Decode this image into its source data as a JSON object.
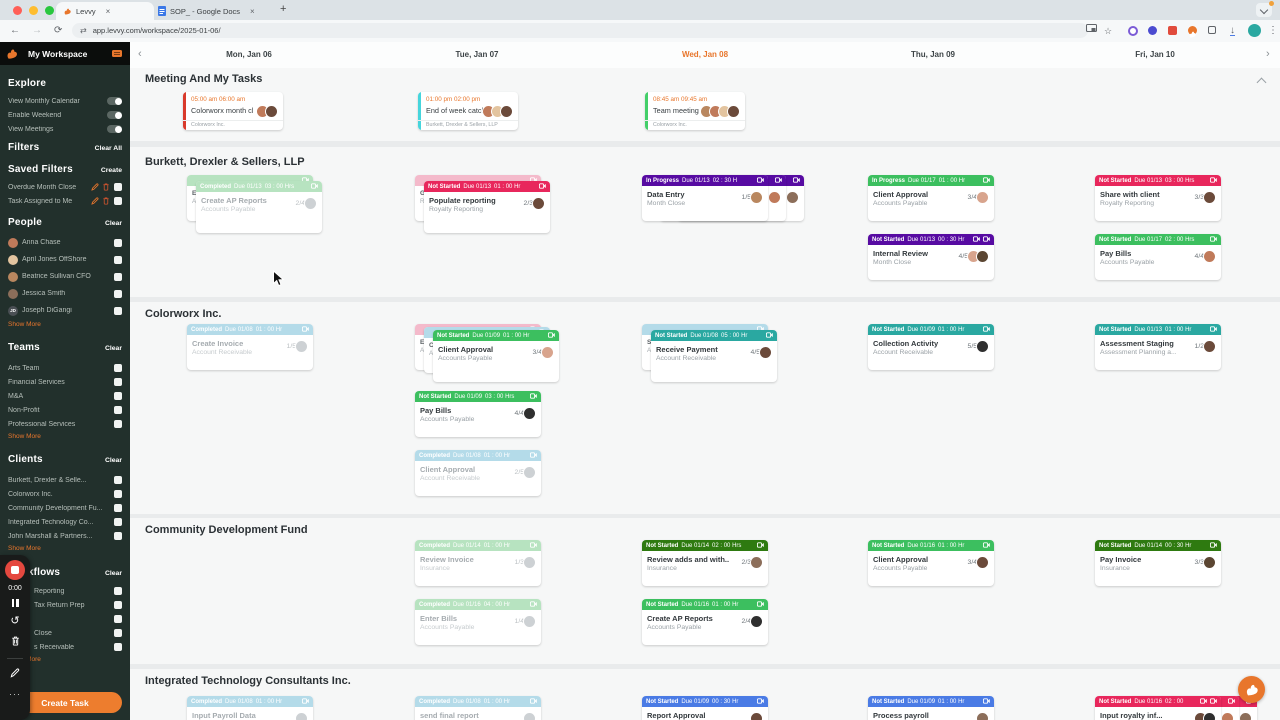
{
  "browser": {
    "tabs": [
      {
        "title": "Levvy",
        "active": true
      },
      {
        "title": "SOP_ - Google Docs",
        "active": false
      }
    ],
    "url": "app.levvy.com/workspace/2025-01-06/"
  },
  "sidebar": {
    "workspace_title": "My Workspace",
    "explore": {
      "title": "Explore",
      "toggles": [
        {
          "label": "View Monthly Calendar",
          "on": false
        },
        {
          "label": "Enable Weekend",
          "on": false
        },
        {
          "label": "View Meetings",
          "on": false
        }
      ]
    },
    "filters": {
      "title": "Filters",
      "action": "Clear All"
    },
    "saved_filters": {
      "title": "Saved Filters",
      "action": "Create",
      "items": [
        {
          "label": "Overdue Month Close"
        },
        {
          "label": "Task Assigned to Me"
        }
      ]
    },
    "people": {
      "title": "People",
      "action": "Clear",
      "show_more": "Show More",
      "items": [
        {
          "name": "Anna Chase",
          "avatar": "#c07a5a"
        },
        {
          "name": "April Jones OffShore",
          "avatar": "#e3c49f"
        },
        {
          "name": "Beatrice Sullivan CFO",
          "avatar": "#b9875f"
        },
        {
          "name": "Jessica Smith",
          "avatar": "#8c6e5a"
        },
        {
          "name": "Joseph DiGangi",
          "avatar": "#4a4f54",
          "initials": "JD"
        }
      ]
    },
    "teams": {
      "title": "Teams",
      "action": "Clear",
      "show_more": "Show More",
      "items": [
        "Arts Team",
        "Financial Services",
        "M&A",
        "Non-Profit",
        "Professional Services"
      ]
    },
    "clients": {
      "title": "Clients",
      "action": "Clear",
      "show_more": "Show More",
      "items": [
        "Burkett, Drexler & Selle...",
        "Colorworx Inc.",
        "Community Development Fu...",
        "Integrated Technology Co...",
        "John Marshall & Partners..."
      ]
    },
    "workflows": {
      "title": "Workflows",
      "action": "Clear",
      "show_more": "Show More",
      "items": [
        "Reporting",
        "Tax Return Prep",
        "",
        "Close",
        "s Receivable"
      ]
    },
    "create_task": "Create Task"
  },
  "recorder": {
    "time": "0:00"
  },
  "calendar": {
    "days": [
      {
        "label": "Mon, Jan 06",
        "active": false
      },
      {
        "label": "Tue, Jan 07",
        "active": false
      },
      {
        "label": "Wed, Jan 08",
        "active": true
      },
      {
        "label": "Thu, Jan 09",
        "active": false
      },
      {
        "label": "Fri, Jan 10",
        "active": false
      }
    ]
  },
  "status_colors": {
    "crimson": "#e8275c",
    "purple": "#570ba2",
    "green": "#3cbf5f",
    "darkgreen": "#2e7a10",
    "teal": "#2aa8a1",
    "blue": "#4a7be5",
    "fadedBlue": "#b4dbe9",
    "fadedGreen": "#b7e3c0",
    "fadedPink": "#f4bacb"
  },
  "accent_orange": "#e8762c",
  "board": {
    "sections": [
      {
        "title": "Meeting And My Tasks",
        "meetings": [
          {
            "col": 0,
            "time": "05:00 am 06:00 am",
            "title": "Colorworx month clos...",
            "client": "Colorworx Inc.",
            "bar": "#d93a2b",
            "avatars": [
              "#c07a5a",
              "#6b4a3a"
            ]
          },
          {
            "col": 1,
            "time": "01:00 pm 02:00 pm",
            "title": "End of week catch ...",
            "client": "Burkett, Drexler & Sellers, LLP",
            "bar": "#45d5dc",
            "avatars": [
              "#c07a5a",
              "#e3c49f",
              "#6b4a3a"
            ]
          },
          {
            "col": 2,
            "time": "08:45 am 09:45 am",
            "title": "Team meeting",
            "client": "Colorworx Inc.",
            "bar": "#43cf69",
            "avatars": [
              "#b9875f",
              "#c07a5a",
              "#e3c49f",
              "#6b4a3a"
            ]
          }
        ]
      },
      {
        "title": "Burkett, Drexler & Sellers, LLP",
        "tasks": [
          {
            "col": 0,
            "row": 0,
            "status": "Completed",
            "due": "Due 01/13",
            "hours": "03 : 00 Hrs",
            "color": "fadedGreen",
            "title": "Create AP Reports",
            "subtitle": "Accounts Payable",
            "progress": "2/4",
            "avatars": [
              "#cdd1d4"
            ],
            "faded": true,
            "stack": "left",
            "behind": [
              {
                "color": "fadedGreen",
                "frag1": "En",
                "frag2": "Ac"
              }
            ]
          },
          {
            "col": 1,
            "row": 0,
            "status": "Not Started",
            "due": "Due 01/13",
            "hours": "01 : 00 Hr",
            "color": "crimson",
            "title": "Populate reporting",
            "subtitle": "Royalty Reporting",
            "progress": "2/3",
            "avatars": [
              "#6b4a3a"
            ],
            "stack": "left",
            "behind": [
              {
                "color": "fadedPink",
                "frag1": "Ga",
                "frag2": "Ro"
              }
            ]
          },
          {
            "col": 2,
            "row": 0,
            "status": "In Progress",
            "due": "Due 01/13",
            "hours": "02 : 30 H",
            "color": "purple",
            "title": "Data Entry",
            "subtitle": "Month Close",
            "progress": "1/5",
            "avatars": [
              "#b9875f"
            ],
            "stack": "right",
            "behind": [
              {
                "color": "purple",
                "avatar": "#c07a5a"
              },
              {
                "color": "purple",
                "avatar": "#8c6e5a"
              }
            ]
          },
          {
            "col": 3,
            "row": 0,
            "status": "In Progress",
            "due": "Due 01/17",
            "hours": "01 : 00 Hr",
            "color": "green",
            "title": "Client Approval",
            "subtitle": "Accounts Payable",
            "progress": "3/4",
            "avatars": [
              "#d8a48d"
            ]
          },
          {
            "col": 3,
            "row": 1,
            "status": "Not Started",
            "due": "Due 01/13",
            "hours": "00 : 30 Hr",
            "color": "purple",
            "title": "Internal Review",
            "subtitle": "Month Close",
            "progress": "4/5",
            "avatars": [
              "#d8a48d",
              "#5b4632"
            ],
            "icons": 2
          },
          {
            "col": 4,
            "row": 0,
            "status": "Not Started",
            "due": "Due 01/13",
            "hours": "03 : 00 Hrs",
            "color": "crimson",
            "title": "Share with client",
            "subtitle": "Royalty Reporting",
            "progress": "3/3",
            "avatars": [
              "#6b4a3a"
            ]
          },
          {
            "col": 4,
            "row": 1,
            "status": "Not Started",
            "due": "Due 01/17",
            "hours": "02 : 00 Hrs",
            "color": "green",
            "title": "Pay Bills",
            "subtitle": "Accounts Payable",
            "progress": "4/4",
            "avatars": [
              "#c07a5a"
            ]
          }
        ]
      },
      {
        "title": "Colorworx Inc.",
        "tasks": [
          {
            "col": 0,
            "row": 0,
            "status": "Completed",
            "due": "Due 01/08",
            "hours": "01 : 00 Hr",
            "color": "fadedBlue",
            "title": "Create Invoice",
            "subtitle": "Account Receivable",
            "progress": "1/5",
            "avatars": [
              "#cdd1d4"
            ],
            "faded": true
          },
          {
            "col": 1,
            "row": 0,
            "status": "Not Started",
            "due": "Due 01/09",
            "hours": "01 : 00 Hr",
            "color": "green",
            "title": "Client Approval",
            "subtitle": "Accounts Payable",
            "progress": "3/4",
            "avatars": [
              "#d8a48d"
            ],
            "stack": "left",
            "behind": [
              {
                "color": "fadedPink",
                "frag1": "En",
                "frag2": "Ac"
              },
              {
                "color": "fadedBlue",
                "frag1": "Cr",
                "frag2": "Ac"
              }
            ]
          },
          {
            "col": 1,
            "row": 1,
            "status": "Not Started",
            "due": "Due 01/09",
            "hours": "03 : 00 Hrs",
            "color": "green",
            "title": "Pay Bills",
            "subtitle": "Accounts Payable",
            "progress": "4/4",
            "avatars": [
              "#2f2f2f"
            ]
          },
          {
            "col": 1,
            "row": 2,
            "status": "Completed",
            "due": "Due 01/08",
            "hours": "01 : 00 Hr",
            "color": "fadedBlue",
            "title": "Client Approval",
            "subtitle": "Account Receivable",
            "progress": "2/5",
            "avatars": [
              "#cdd1d4"
            ],
            "faded": true
          },
          {
            "col": 2,
            "row": 0,
            "status": "Not Started",
            "due": "Due 01/08",
            "hours": "05 : 00 Hr",
            "color": "teal",
            "title": "Receive Payment",
            "subtitle": "Account Receivable",
            "progress": "4/5",
            "avatars": [
              "#6b4a3a"
            ],
            "stack": "left",
            "behind": [
              {
                "color": "fadedBlue",
                "frag1": "Se",
                "frag2": "Ac"
              }
            ]
          },
          {
            "col": 3,
            "row": 0,
            "status": "Not Started",
            "due": "Due 01/09",
            "hours": "01 : 00 Hr",
            "color": "teal",
            "title": "Collection Activity",
            "subtitle": "Account Receivable",
            "progress": "5/5",
            "avatars": [
              "#2f2f2f"
            ]
          },
          {
            "col": 4,
            "row": 0,
            "status": "Not Started",
            "due": "Due 01/13",
            "hours": "01 : 00 Hr",
            "color": "teal",
            "title": "Assessment Staging",
            "subtitle": "Assessment Planning a...",
            "progress": "1/2",
            "avatars": [
              "#6b4a3a"
            ]
          }
        ]
      },
      {
        "title": "Community Development Fund",
        "tasks": [
          {
            "col": 1,
            "row": 0,
            "status": "Completed",
            "due": "Due 01/14",
            "hours": "01 : 00 Hr",
            "color": "fadedGreen",
            "title": "Review Invoice",
            "subtitle": "Insurance",
            "progress": "1/3",
            "avatars": [
              "#cdd1d4"
            ],
            "faded": true
          },
          {
            "col": 1,
            "row": 1,
            "status": "Completed",
            "due": "Due 01/16",
            "hours": "04 : 00 Hr",
            "color": "fadedGreen",
            "title": "Enter Bills",
            "subtitle": "Accounts Payable",
            "progress": "1/4",
            "avatars": [
              "#cdd1d4"
            ],
            "faded": true
          },
          {
            "col": 2,
            "row": 0,
            "status": "Not Started",
            "due": "Due 01/14",
            "hours": "02 : 00 Hrs",
            "color": "darkgreen",
            "title": "Review adds and with...",
            "subtitle": "Insurance",
            "progress": "2/3",
            "avatars": [
              "#8c6e5a"
            ]
          },
          {
            "col": 2,
            "row": 1,
            "status": "Not Started",
            "due": "Due 01/16",
            "hours": "01 : 00 Hr",
            "color": "green",
            "title": "Create AP Reports",
            "subtitle": "Accounts Payable",
            "progress": "2/4",
            "avatars": [
              "#2f2f2f"
            ]
          },
          {
            "col": 3,
            "row": 0,
            "status": "Not Started",
            "due": "Due 01/16",
            "hours": "01 : 00 Hr",
            "color": "green",
            "title": "Client Approval",
            "subtitle": "Accounts Payable",
            "progress": "3/4",
            "avatars": [
              "#6b4a3a"
            ]
          },
          {
            "col": 4,
            "row": 0,
            "status": "Not Started",
            "due": "Due 01/14",
            "hours": "00 : 30 Hr",
            "color": "darkgreen",
            "title": "Pay Invoice",
            "subtitle": "Insurance",
            "progress": "3/3",
            "avatars": [
              "#5b4632"
            ]
          }
        ]
      },
      {
        "title": "Integrated Technology Consultants Inc.",
        "tasks": [
          {
            "col": 0,
            "row": 0,
            "status": "Completed",
            "due": "Due 01/08",
            "hours": "01 : 00 Hr",
            "color": "fadedBlue",
            "title": "Input Payroll Data",
            "subtitle": "",
            "progress": "",
            "avatars": [
              "#cdd1d4"
            ],
            "faded": true
          },
          {
            "col": 1,
            "row": 0,
            "status": "Completed",
            "due": "Due 01/08",
            "hours": "01 : 00 Hr",
            "color": "fadedBlue",
            "title": "send final report",
            "subtitle": "",
            "progress": "",
            "avatars": [
              "#cdd1d4"
            ],
            "faded": true
          },
          {
            "col": 2,
            "row": 0,
            "status": "Not Started",
            "due": "Due 01/09",
            "hours": "00 : 30 Hr",
            "color": "blue",
            "title": "Report Approval",
            "subtitle": "",
            "progress": "",
            "avatars": [
              "#6b4a3a"
            ]
          },
          {
            "col": 3,
            "row": 0,
            "status": "Not Started",
            "due": "Due 01/09",
            "hours": "01 : 00 Hr",
            "color": "blue",
            "title": "Process payroll",
            "subtitle": "",
            "progress": "",
            "avatars": [
              "#8c6e5a"
            ]
          },
          {
            "col": 4,
            "row": 0,
            "status": "Not Started",
            "due": "Due 01/16",
            "hours": "02 : 00",
            "color": "crimson",
            "title": "Input royalty inf...",
            "subtitle": "",
            "progress": "",
            "avatars": [
              "#6b4a3a",
              "#2f2f2f"
            ],
            "icons": 2,
            "stack": "right",
            "behind": [
              {
                "color": "crimson",
                "avatar": "#c07a5a"
              },
              {
                "color": "crimson",
                "avatar": "#8c6e5a"
              }
            ]
          }
        ]
      }
    ]
  }
}
